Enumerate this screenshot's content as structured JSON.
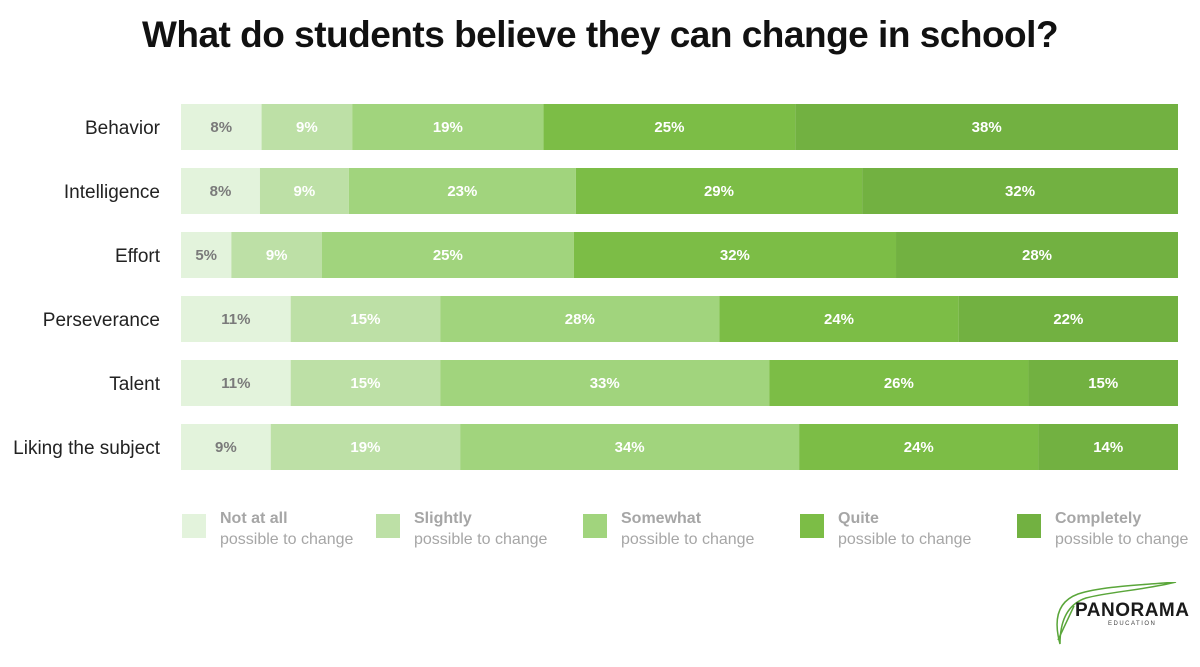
{
  "chart_data": {
    "type": "bar",
    "orientation": "horizontal",
    "stacked": true,
    "title": "What do students believe they can change in school?",
    "categories": [
      "Behavior",
      "Intelligence",
      "Effort",
      "Perseverance",
      "Talent",
      "Liking the subject"
    ],
    "series": [
      {
        "name": "Not at all possible to change",
        "level": "Not at all",
        "sub": "possible to change",
        "color": "#e3f3dc",
        "text_color": "#7a7a7a",
        "values": [
          8,
          8,
          5,
          11,
          11,
          9
        ]
      },
      {
        "name": "Slightly possible to change",
        "level": "Slightly",
        "sub": "possible to change",
        "color": "#bde0a6",
        "text_color": "#ffffff",
        "values": [
          9,
          9,
          9,
          15,
          15,
          19
        ]
      },
      {
        "name": "Somewhat possible to change",
        "level": "Somewhat",
        "sub": "possible to change",
        "color": "#a1d47d",
        "text_color": "#ffffff",
        "values": [
          19,
          23,
          25,
          28,
          33,
          34
        ]
      },
      {
        "name": "Quite possible to change",
        "level": "Quite",
        "sub": "possible to change",
        "color": "#7cbd46",
        "text_color": "#ffffff",
        "values": [
          25,
          29,
          32,
          24,
          26,
          24
        ]
      },
      {
        "name": "Completely possible to change",
        "level": "Completely",
        "sub": "possible to change",
        "color": "#72b141",
        "text_color": "#ffffff",
        "values": [
          38,
          32,
          28,
          22,
          15,
          14
        ]
      }
    ],
    "value_suffix": "%",
    "legend_position": "bottom",
    "grid": false
  },
  "logo": {
    "name": "PANORAMA",
    "sub": "EDUCATION",
    "color": "#5aa63a"
  }
}
